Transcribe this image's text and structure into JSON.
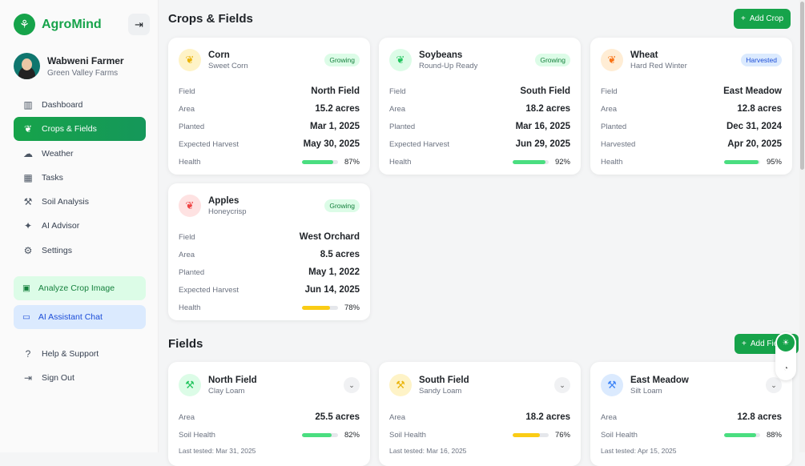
{
  "app": {
    "name": "AgroMind"
  },
  "user": {
    "name": "Wabweni Farmer",
    "farm": "Green Valley Farms"
  },
  "nav": [
    {
      "label": "Dashboard",
      "icon": "chart-icon",
      "glyph": "▥"
    },
    {
      "label": "Crops & Fields",
      "icon": "leaf-icon",
      "glyph": "❦",
      "active": true
    },
    {
      "label": "Weather",
      "icon": "cloud-rain-icon",
      "glyph": "☁"
    },
    {
      "label": "Tasks",
      "icon": "calendar-icon",
      "glyph": "▦"
    },
    {
      "label": "Soil Analysis",
      "icon": "shovel-icon",
      "glyph": "⚒"
    },
    {
      "label": "AI Advisor",
      "icon": "sparkles-icon",
      "glyph": "✦"
    },
    {
      "label": "Settings",
      "icon": "gear-icon",
      "glyph": "⚙"
    }
  ],
  "quick": {
    "analyze": "Analyze Crop Image",
    "chat": "AI Assistant Chat"
  },
  "bottom": [
    {
      "label": "Help & Support",
      "icon": "help-icon",
      "glyph": "?"
    },
    {
      "label": "Sign Out",
      "icon": "sign-out-icon",
      "glyph": "⇥"
    }
  ],
  "crops_section": {
    "title": "Crops & Fields",
    "add": "Add Crop"
  },
  "crops": [
    {
      "name": "Corn",
      "variety": "Sweet Corn",
      "status": "Growing",
      "icbg": "#fef3c7",
      "icfg": "#eab308",
      "rows": [
        [
          "Field",
          "North Field"
        ],
        [
          "Area",
          "15.2 acres"
        ],
        [
          "Planted",
          "Mar 1, 2025"
        ],
        [
          "Expected Harvest",
          "May 30, 2025"
        ]
      ],
      "health_label": "Health",
      "health": 87,
      "color": "#4ade80"
    },
    {
      "name": "Soybeans",
      "variety": "Round-Up Ready",
      "status": "Growing",
      "icbg": "#dcfce7",
      "icfg": "#22c55e",
      "rows": [
        [
          "Field",
          "South Field"
        ],
        [
          "Area",
          "18.2 acres"
        ],
        [
          "Planted",
          "Mar 16, 2025"
        ],
        [
          "Expected Harvest",
          "Jun 29, 2025"
        ]
      ],
      "health_label": "Health",
      "health": 92,
      "color": "#4ade80"
    },
    {
      "name": "Wheat",
      "variety": "Hard Red Winter",
      "status": "Harvested",
      "icbg": "#ffedd5",
      "icfg": "#f97316",
      "rows": [
        [
          "Field",
          "East Meadow"
        ],
        [
          "Area",
          "12.8 acres"
        ],
        [
          "Planted",
          "Dec 31, 2024"
        ],
        [
          "Harvested",
          "Apr 20, 2025"
        ]
      ],
      "health_label": "Health",
      "health": 95,
      "color": "#4ade80"
    },
    {
      "name": "Apples",
      "variety": "Honeycrisp",
      "status": "Growing",
      "icbg": "#fee2e2",
      "icfg": "#ef4444",
      "rows": [
        [
          "Field",
          "West Orchard"
        ],
        [
          "Area",
          "8.5 acres"
        ],
        [
          "Planted",
          "May 1, 2022"
        ],
        [
          "Expected Harvest",
          "Jun 14, 2025"
        ]
      ],
      "health_label": "Health",
      "health": 78,
      "color": "#facc15"
    }
  ],
  "fields_section": {
    "title": "Fields",
    "add": "Add Field"
  },
  "fields": [
    {
      "name": "North Field",
      "soil": "Clay Loam",
      "area_label": "Area",
      "area": "25.5 acres",
      "health_label": "Soil Health",
      "health": 82,
      "color": "#4ade80",
      "tested": "Last tested: Mar 31, 2025",
      "icbg": "#dcfce7",
      "icfg": "#22c55e"
    },
    {
      "name": "South Field",
      "soil": "Sandy Loam",
      "area_label": "Area",
      "area": "18.2 acres",
      "health_label": "Soil Health",
      "health": 76,
      "color": "#facc15",
      "tested": "Last tested: Mar 16, 2025",
      "icbg": "#fef3c7",
      "icfg": "#eab308"
    },
    {
      "name": "East Meadow",
      "soil": "Silt Loam",
      "area_label": "Area",
      "area": "12.8 acres",
      "health_label": "Soil Health",
      "health": 88,
      "color": "#4ade80",
      "tested": "Last tested: Apr 15, 2025",
      "icbg": "#dbeafe",
      "icfg": "#3b82f6"
    }
  ]
}
